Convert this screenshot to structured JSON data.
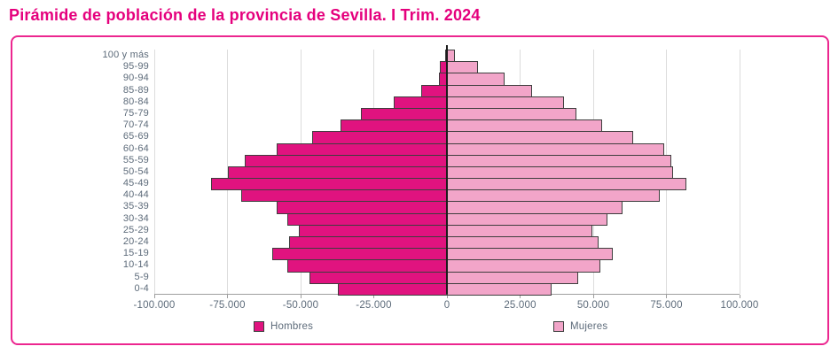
{
  "title": "Pirámide de población de la provincia de Sevilla. I Trim. 2024",
  "colors": {
    "title_text": "#e5007d",
    "frame_border": "#ec268f",
    "hombres_fill": "#e0137f",
    "mujeres_fill": "#f2a5c9",
    "bar_border": "#3e3e3e",
    "gridline": "#dcdcdc",
    "zero_axis": "#1c1c1c",
    "tick_text": "#5d6b7a"
  },
  "chart_data": {
    "type": "bar",
    "subtype": "population-pyramid",
    "orientation": "horizontal",
    "title": "Pirámide de población de la provincia de Sevilla. I Trim. 2024",
    "xlabel": "",
    "ylabel": "",
    "xlim": [
      -100000,
      100000
    ],
    "x_ticks": [
      "-100.000",
      "-75.000",
      "-50.000",
      "-25.000",
      "0",
      "25.000",
      "50.000",
      "75.000",
      "100.000"
    ],
    "x_tick_values": [
      -100000,
      -75000,
      -50000,
      -25000,
      0,
      25000,
      50000,
      75000,
      100000
    ],
    "grid": true,
    "legend_position": "bottom",
    "categories": [
      "100 y más",
      "95-99",
      "90-94",
      "85-89",
      "80-84",
      "75-79",
      "70-74",
      "65-69",
      "60-64",
      "55-59",
      "50-54",
      "45-49",
      "40-44",
      "35-39",
      "30-34",
      "25-29",
      "20-24",
      "15-19",
      "10-14",
      "5-9",
      "0-4"
    ],
    "series": [
      {
        "name": "Hombres",
        "side": "left",
        "color": "#e0137f",
        "values": [
          500,
          2300,
          2700,
          8700,
          18100,
          29500,
          36400,
          46100,
          58100,
          69000,
          74700,
          80500,
          70200,
          58100,
          54500,
          50600,
          53900,
          59600,
          54500,
          47000,
          37300
        ]
      },
      {
        "name": "Mujeres",
        "side": "right",
        "color": "#f2a5c9",
        "values": [
          2700,
          10500,
          19600,
          29200,
          40000,
          44300,
          53000,
          63600,
          74100,
          76800,
          77200,
          81900,
          72600,
          59900,
          54800,
          49700,
          51800,
          56600,
          52400,
          44900,
          35800
        ]
      }
    ]
  }
}
